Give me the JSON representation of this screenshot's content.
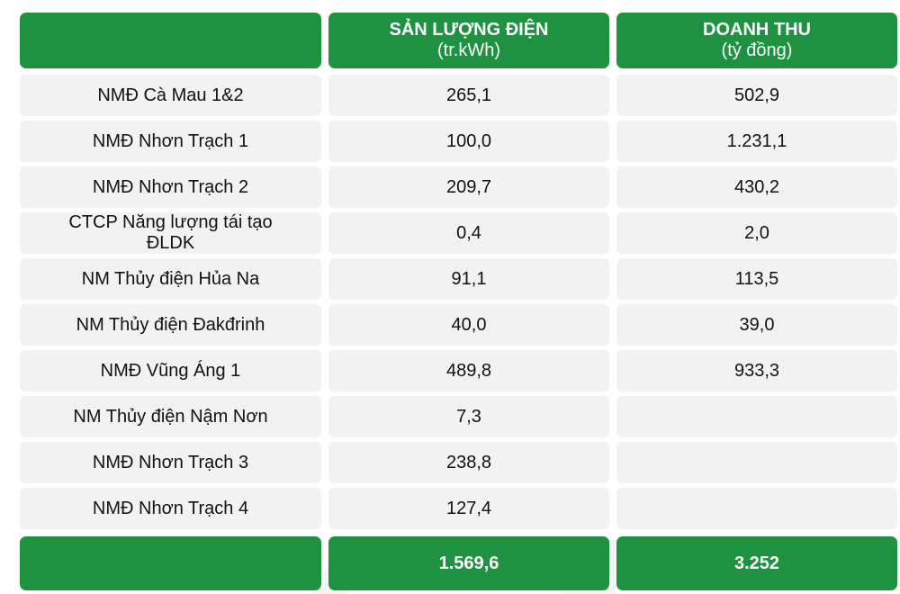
{
  "header": {
    "col0": "",
    "col1_title": "SẢN LƯỢNG ĐIỆN",
    "col1_unit": "(tr.kWh)",
    "col2_title": "DOANH THU",
    "col2_unit": "(tỷ đồng)"
  },
  "rows": [
    {
      "name": "NMĐ Cà Mau 1&2",
      "output": "265,1",
      "revenue": "502,9"
    },
    {
      "name": "NMĐ Nhơn Trạch 1",
      "output": "100,0",
      "revenue": "1.231,1"
    },
    {
      "name": "NMĐ Nhơn Trạch 2",
      "output": "209,7",
      "revenue": "430,2"
    },
    {
      "name": "CTCP Năng lượng tái tạo ĐLDK",
      "output": "0,4",
      "revenue": "2,0"
    },
    {
      "name": "NM Thủy điện Hủa Na",
      "output": "91,1",
      "revenue": "113,5"
    },
    {
      "name": "NM Thủy điện Đakđrinh",
      "output": "40,0",
      "revenue": "39,0"
    },
    {
      "name": "NMĐ Vũng Áng 1",
      "output": "489,8",
      "revenue": "933,3"
    },
    {
      "name": "NM Thủy điện Nậm Nơn",
      "output": "7,3",
      "revenue": ""
    },
    {
      "name": "NMĐ Nhơn Trạch 3",
      "output": "238,8",
      "revenue": ""
    },
    {
      "name": "NMĐ Nhơn Trạch 4",
      "output": "127,4",
      "revenue": ""
    }
  ],
  "total": {
    "label": "",
    "output": "1.569,6",
    "revenue": "3.252"
  },
  "colors": {
    "green": "#1e9240",
    "row_bg": "#f2f2f2"
  }
}
